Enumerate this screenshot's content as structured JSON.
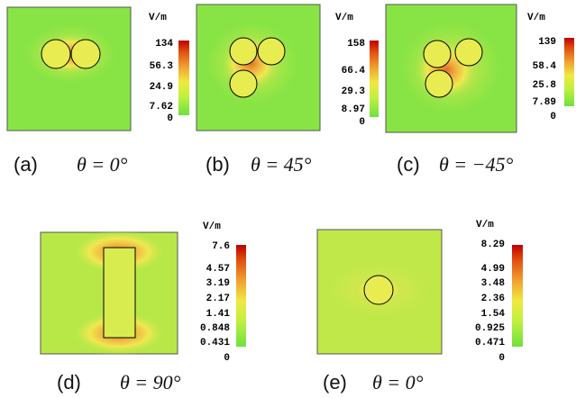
{
  "panels": [
    {
      "unit": "V/m",
      "ticks": [
        "134",
        "56.3",
        "24.9",
        "7.62",
        "0"
      ],
      "label": "(a)",
      "formula": "θ = 0°"
    },
    {
      "unit": "V/m",
      "ticks": [
        "158",
        "66.4",
        "29.3",
        "8.97",
        "0"
      ],
      "label": "(b)",
      "formula": "θ = 45°"
    },
    {
      "unit": "V/m",
      "ticks": [
        "139",
        "58.4",
        "25.8",
        "7.89",
        "0"
      ],
      "label": "(c)",
      "formula": "θ = −45°"
    },
    {
      "unit": "V/m",
      "ticks": [
        "7.6",
        "4.57",
        "3.19",
        "2.17",
        "1.41",
        "0.848",
        "0.431",
        "0"
      ],
      "label": "(d)",
      "formula": "θ = 90°"
    },
    {
      "unit": "V/m",
      "ticks": [
        "8.29",
        "4.99",
        "3.48",
        "2.36",
        "1.54",
        "0.925",
        "0.471",
        "0"
      ],
      "label": "(e)",
      "formula": "θ = 0°"
    }
  ]
}
